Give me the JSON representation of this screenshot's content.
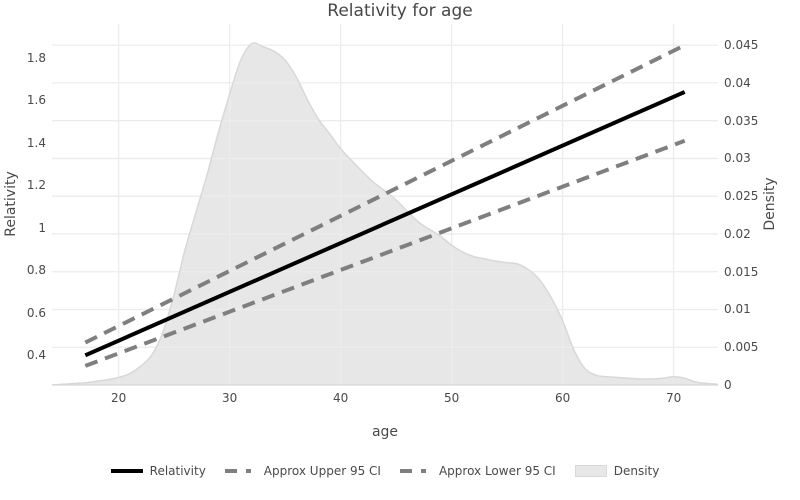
{
  "chart_data": {
    "type": "line",
    "title": "Relativity for age",
    "xlabel": "age",
    "ylabel": "Relativity",
    "ylabel_right": "Density",
    "x_range": [
      14,
      74
    ],
    "ylim_left": [
      0.26,
      1.96
    ],
    "ylim_right": [
      0,
      0.0478
    ],
    "grid": true,
    "legend_position": "bottom",
    "x_ticks": [
      {
        "v": 20,
        "label": "20"
      },
      {
        "v": 30,
        "label": "30"
      },
      {
        "v": 40,
        "label": "40"
      },
      {
        "v": 50,
        "label": "50"
      },
      {
        "v": 60,
        "label": "60"
      },
      {
        "v": 70,
        "label": "70"
      }
    ],
    "y_left_ticks": [
      {
        "v": 0.4,
        "label": "0.4"
      },
      {
        "v": 0.6,
        "label": "0.6"
      },
      {
        "v": 0.8,
        "label": "0.8"
      },
      {
        "v": 1,
        "label": "1"
      },
      {
        "v": 1.2,
        "label": "1.2"
      },
      {
        "v": 1.4,
        "label": "1.4"
      },
      {
        "v": 1.6,
        "label": "1.6"
      },
      {
        "v": 1.8,
        "label": "1.8"
      }
    ],
    "y_right_ticks": [
      {
        "v": 0,
        "label": "0"
      },
      {
        "v": 0.005,
        "label": "0.005"
      },
      {
        "v": 0.01,
        "label": "0.01"
      },
      {
        "v": 0.015,
        "label": "0.015"
      },
      {
        "v": 0.02,
        "label": "0.02"
      },
      {
        "v": 0.025,
        "label": "0.025"
      },
      {
        "v": 0.03,
        "label": "0.03"
      },
      {
        "v": 0.035,
        "label": "0.035"
      },
      {
        "v": 0.04,
        "label": "0.04"
      },
      {
        "v": 0.045,
        "label": "0.045"
      }
    ],
    "series": [
      {
        "name": "Relativity",
        "axis": "left",
        "style": "solid",
        "color": "#000000",
        "width": 4,
        "x": [
          17,
          71
        ],
        "y": [
          0.4,
          1.64
        ]
      },
      {
        "name": "Approx Upper 95 CI",
        "axis": "left",
        "style": "dashed",
        "color": "#7f7f7f",
        "width": 4,
        "x": [
          17,
          71
        ],
        "y": [
          0.46,
          1.86
        ]
      },
      {
        "name": "Approx Lower 95 CI",
        "axis": "left",
        "style": "dashed",
        "color": "#7f7f7f",
        "width": 4,
        "x": [
          17,
          71
        ],
        "y": [
          0.35,
          1.41
        ]
      },
      {
        "name": "Density",
        "axis": "right",
        "style": "area",
        "color": "#e7e7e7",
        "x": [
          14,
          15,
          16,
          17,
          18,
          19,
          20,
          21,
          22,
          23,
          24,
          25,
          26,
          27,
          28,
          29,
          30,
          31,
          32,
          33,
          34,
          35,
          36,
          37,
          38,
          39,
          40,
          41,
          42,
          43,
          44,
          45,
          46,
          47,
          48,
          49,
          50,
          51,
          52,
          53,
          54,
          55,
          56,
          57,
          58,
          59,
          60,
          61,
          62,
          63,
          64,
          65,
          66,
          67,
          68,
          69,
          70,
          71,
          72,
          73,
          74
        ],
        "y": [
          0,
          0.0001,
          0.0002,
          0.0003,
          0.0005,
          0.0007,
          0.001,
          0.0015,
          0.0025,
          0.004,
          0.007,
          0.012,
          0.018,
          0.023,
          0.028,
          0.0335,
          0.0385,
          0.043,
          0.0452,
          0.0448,
          0.0442,
          0.043,
          0.0408,
          0.0378,
          0.0352,
          0.0333,
          0.0313,
          0.0297,
          0.0282,
          0.0268,
          0.0257,
          0.0245,
          0.023,
          0.0216,
          0.0206,
          0.0197,
          0.0185,
          0.0176,
          0.017,
          0.0167,
          0.0164,
          0.0162,
          0.016,
          0.0152,
          0.0138,
          0.0115,
          0.0085,
          0.0047,
          0.0022,
          0.0013,
          0.0011,
          0.001,
          0.0009,
          0.0008,
          0.0008,
          0.0009,
          0.0011,
          0.0009,
          0.0004,
          0.0002,
          0.0001
        ]
      }
    ]
  },
  "legend": {
    "items": [
      {
        "label": "Relativity",
        "swatch": "solid-line",
        "color": "#000000"
      },
      {
        "label": "Approx Upper 95 CI",
        "swatch": "dashed-line",
        "color": "#7f7f7f"
      },
      {
        "label": "Approx Lower 95 CI",
        "swatch": "dashed-line",
        "color": "#7f7f7f"
      },
      {
        "label": "Density",
        "swatch": "filled-area",
        "color": "#e7e7e7"
      }
    ]
  },
  "colors": {
    "background": "#ffffff",
    "text": "#4a4a4a",
    "grid": "#ececec",
    "axis_line": "#d6d6d6",
    "relativity_line": "#000000",
    "ci_line": "#7f7f7f",
    "density_fill": "#e7e7e7",
    "density_outline": "#d8d8d8"
  }
}
